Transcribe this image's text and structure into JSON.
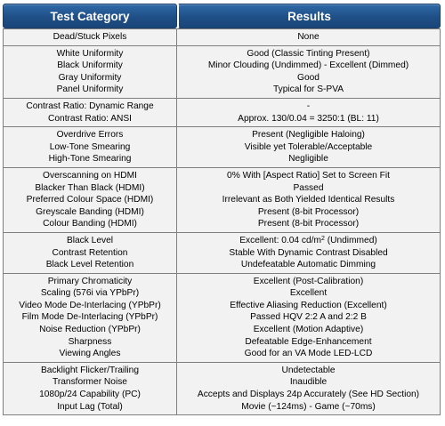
{
  "header": {
    "category_label": "Test Category",
    "results_label": "Results"
  },
  "groups": [
    {
      "rows": [
        {
          "category": "Dead/Stuck Pixels",
          "result": "None"
        }
      ]
    },
    {
      "rows": [
        {
          "category": "White Uniformity",
          "result": "Good (Classic Tinting Present)"
        },
        {
          "category": "Black Uniformity",
          "result": "Minor Clouding (Undimmed) - Excellent (Dimmed)"
        },
        {
          "category": "Gray Uniformity",
          "result": "Good"
        },
        {
          "category": "Panel Uniformity",
          "result": "Typical for S-PVA"
        }
      ]
    },
    {
      "rows": [
        {
          "category": "Contrast Ratio: Dynamic Range",
          "result": "-"
        },
        {
          "category": "Contrast Ratio: ANSI",
          "result": "Approx. 130/0.04 = 3250:1 (BL: 11)"
        }
      ]
    },
    {
      "rows": [
        {
          "category": "Overdrive Errors",
          "result": "Present (Negligible Haloing)"
        },
        {
          "category": "Low-Tone Smearing",
          "result": "Visible yet Tolerable/Acceptable"
        },
        {
          "category": "High-Tone Smearing",
          "result": "Negligible"
        }
      ]
    },
    {
      "rows": [
        {
          "category": "Overscanning on HDMI",
          "result": "0% With [Aspect Ratio] Set to Screen Fit"
        },
        {
          "category": "Blacker Than Black (HDMI)",
          "result": "Passed"
        },
        {
          "category": "Preferred Colour Space (HDMI)",
          "result": "Irrelevant as Both Yielded Identical Results"
        },
        {
          "category": "Greyscale Banding (HDMI)",
          "result": "Present (8-bit Processor)"
        },
        {
          "category": "Colour Banding (HDMI)",
          "result": "Present (8-bit Processor)"
        }
      ]
    },
    {
      "rows": [
        {
          "category": "Black Level",
          "result": "Excellent: 0.04 cd/m",
          "sup": "2",
          "result_suffix": " (Undimmed)"
        },
        {
          "category": "Contrast Retention",
          "result": "Stable With Dynamic Contrast Disabled"
        },
        {
          "category": "Black Level Retention",
          "result": "Undefeatable Automatic Dimming"
        }
      ]
    },
    {
      "rows": [
        {
          "category": "Primary Chromaticity",
          "result": "Excellent (Post-Calibration)"
        },
        {
          "category": "Scaling (576i via YPbPr)",
          "result": "Excellent"
        },
        {
          "category": "Video Mode De-Interlacing (YPbPr)",
          "result": "Effective Aliasing Reduction (Excellent)"
        },
        {
          "category": "Film Mode De-Interlacing (YPbPr)",
          "result": "Passed HQV 2:2 A and 2:2 B"
        },
        {
          "category": "Noise Reduction (YPbPr)",
          "result": "Excellent (Motion Adaptive)"
        },
        {
          "category": "Sharpness",
          "result": "Defeatable Edge-Enhancement"
        },
        {
          "category": "Viewing Angles",
          "result": "Good for an VA Mode LED-LCD"
        }
      ]
    },
    {
      "rows": [
        {
          "category": "Backlight Flicker/Trailing",
          "result": "Undetectable"
        },
        {
          "category": "Transformer Noise",
          "result": "Inaudible"
        },
        {
          "category": "1080p/24 Capability (PC)",
          "result": "Accepts and Displays 24p Accurately (See HD Section)"
        },
        {
          "category": "Input Lag (Total)",
          "result": "Movie (~124ms) - Game (~70ms)"
        }
      ]
    }
  ]
}
